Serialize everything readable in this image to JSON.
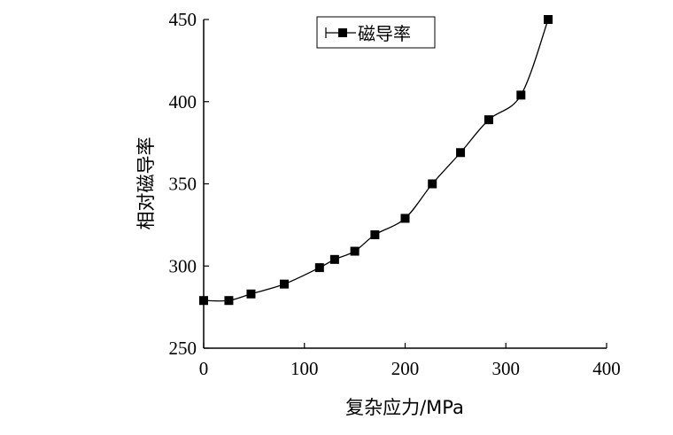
{
  "chart_data": {
    "type": "line",
    "xlabel": "复杂应力/MPa",
    "ylabel": "相对磁导率",
    "xlim": [
      0,
      400
    ],
    "ylim": [
      250,
      450
    ],
    "xticks": [
      0,
      100,
      200,
      300,
      400
    ],
    "yticks": [
      250,
      300,
      350,
      400,
      450
    ],
    "grid": false,
    "legend_position": "top-center",
    "series": [
      {
        "name": "磁导率",
        "marker": "square",
        "color": "#000000",
        "x": [
          0,
          25,
          47,
          80,
          115,
          130,
          150,
          170,
          200,
          227,
          255,
          283,
          315,
          342
        ],
        "y": [
          279,
          279,
          283,
          289,
          299,
          304,
          309,
          319,
          329,
          350,
          369,
          389,
          404,
          450
        ]
      }
    ]
  }
}
